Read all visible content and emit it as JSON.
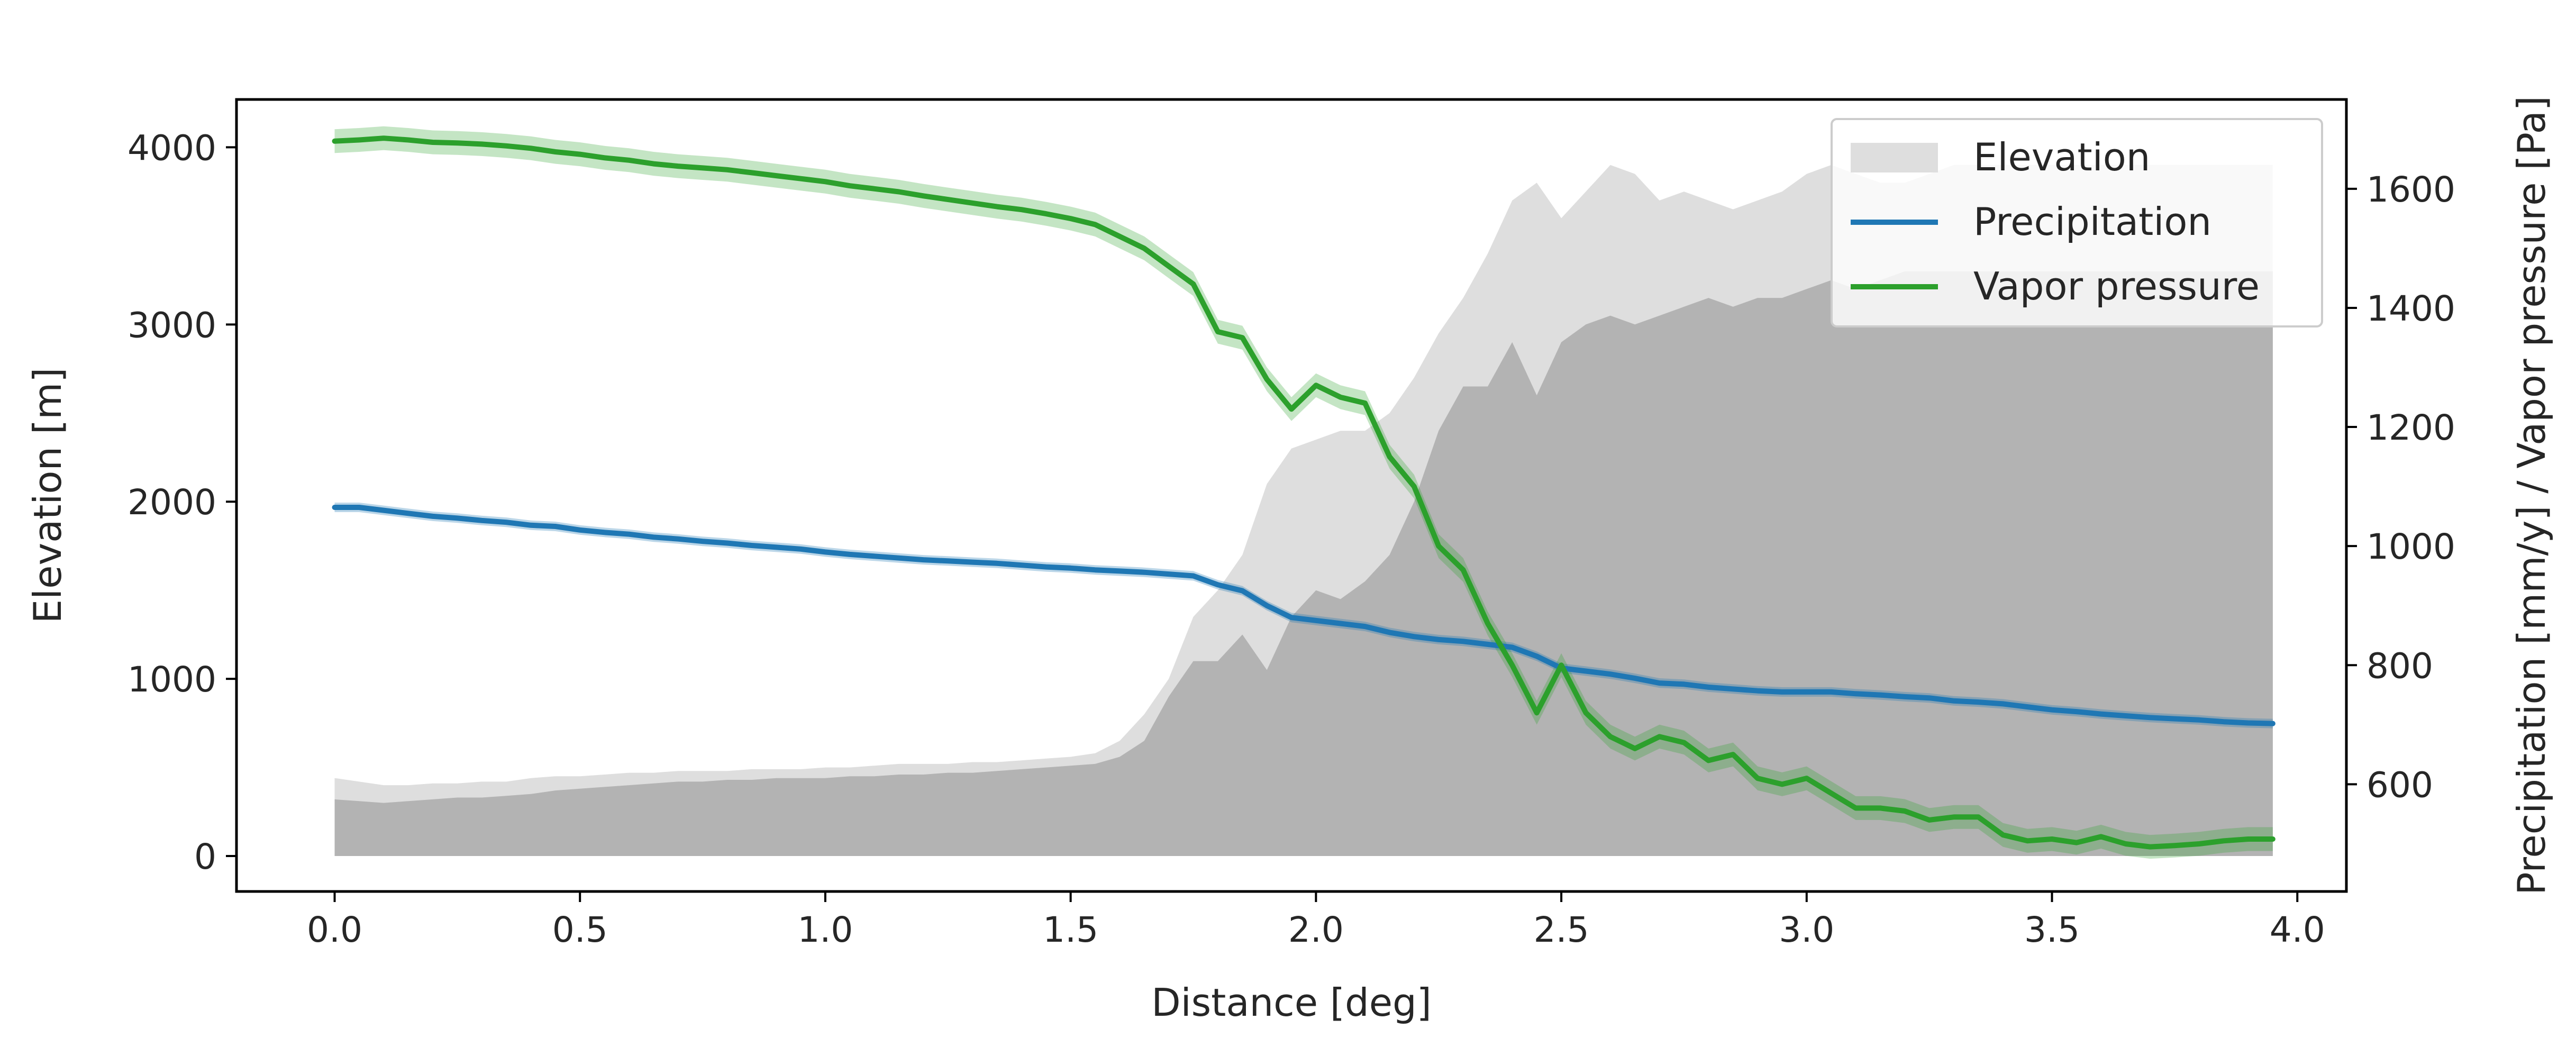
{
  "chart_data": {
    "type": "area",
    "title": "",
    "xlabel": "Distance [deg]",
    "ylabel_left": "Elevation [m]",
    "ylabel_right": "Precipitation [mm/y] / Vapor pressure [Pa]",
    "xlim": [
      -0.2,
      4.1
    ],
    "ylim_left": [
      -200,
      4270
    ],
    "ylim_right": [
      420,
      1750
    ],
    "xticks": [
      0.0,
      0.5,
      1.0,
      1.5,
      2.0,
      2.5,
      3.0,
      3.5,
      4.0
    ],
    "xtick_labels": [
      "0.0",
      "0.5",
      "1.0",
      "1.5",
      "2.0",
      "2.5",
      "3.0",
      "3.5",
      "4.0"
    ],
    "yticks_left": [
      0,
      1000,
      2000,
      3000,
      4000
    ],
    "ytick_labels_left": [
      "0",
      "1000",
      "2000",
      "3000",
      "4000"
    ],
    "yticks_right": [
      600,
      800,
      1000,
      1200,
      1400,
      1600
    ],
    "ytick_labels_right": [
      "600",
      "800",
      "1000",
      "1200",
      "1400",
      "1600"
    ],
    "grid": false,
    "legend_position": "top-right",
    "legend": [
      "Elevation",
      "Precipitation",
      "Vapor pressure"
    ],
    "colors": {
      "elevation_mean": "#b3b3b3",
      "elevation_band": "#dedede",
      "precipitation": "#1f77b4",
      "vapor_pressure": "#2ca02c"
    },
    "x": [
      0.0,
      0.05,
      0.1,
      0.15,
      0.2,
      0.25,
      0.3,
      0.35,
      0.4,
      0.45,
      0.5,
      0.55,
      0.6,
      0.65,
      0.7,
      0.75,
      0.8,
      0.85,
      0.9,
      0.95,
      1.0,
      1.05,
      1.1,
      1.15,
      1.2,
      1.25,
      1.3,
      1.35,
      1.4,
      1.45,
      1.5,
      1.55,
      1.6,
      1.65,
      1.7,
      1.75,
      1.8,
      1.85,
      1.9,
      1.95,
      2.0,
      2.05,
      2.1,
      2.15,
      2.2,
      2.25,
      2.3,
      2.35,
      2.4,
      2.45,
      2.5,
      2.55,
      2.6,
      2.65,
      2.7,
      2.75,
      2.8,
      2.85,
      2.9,
      2.95,
      3.0,
      3.05,
      3.1,
      3.15,
      3.2,
      3.25,
      3.3,
      3.35,
      3.4,
      3.45,
      3.5,
      3.55,
      3.6,
      3.65,
      3.7,
      3.75,
      3.8,
      3.85,
      3.9,
      3.95
    ],
    "series": [
      {
        "name": "Elevation",
        "axis": "left",
        "style": "area",
        "values": [
          320,
          310,
          300,
          310,
          320,
          330,
          330,
          340,
          350,
          370,
          380,
          390,
          400,
          410,
          420,
          420,
          430,
          430,
          440,
          440,
          440,
          450,
          450,
          460,
          460,
          470,
          470,
          480,
          490,
          500,
          510,
          520,
          560,
          650,
          900,
          1100,
          1100,
          1250,
          1050,
          1350,
          1500,
          1450,
          1550,
          1700,
          2000,
          2400,
          2650,
          2650,
          2900,
          2600,
          2900,
          3000,
          3050,
          3000,
          3050,
          3100,
          3150,
          3100,
          3150,
          3150,
          3200,
          3250,
          3200,
          3250,
          3300,
          3300,
          3300,
          3300,
          3300,
          3300,
          3300,
          3300,
          3300,
          3300,
          3300,
          3300,
          3300,
          3300,
          3300,
          3300
        ],
        "band_upper": [
          440,
          420,
          400,
          400,
          410,
          410,
          420,
          420,
          440,
          450,
          450,
          460,
          470,
          470,
          480,
          480,
          480,
          490,
          490,
          490,
          500,
          500,
          510,
          520,
          520,
          520,
          530,
          530,
          540,
          550,
          560,
          580,
          650,
          800,
          1000,
          1350,
          1500,
          1700,
          2100,
          2300,
          2350,
          2400,
          2400,
          2500,
          2700,
          2950,
          3150,
          3400,
          3700,
          3800,
          3600,
          3750,
          3900,
          3850,
          3700,
          3750,
          3700,
          3650,
          3700,
          3750,
          3850,
          3900,
          3850,
          3800,
          3800,
          3850,
          3900,
          3900,
          3900,
          3900,
          3900,
          3900,
          3900,
          3900,
          3900,
          3900,
          3900,
          3900,
          3900,
          3900
        ]
      },
      {
        "name": "Precipitation",
        "axis": "right",
        "style": "line",
        "values": [
          1065,
          1065,
          1060,
          1055,
          1050,
          1047,
          1043,
          1040,
          1035,
          1033,
          1027,
          1023,
          1020,
          1015,
          1012,
          1008,
          1005,
          1001,
          998,
          995,
          990,
          986,
          983,
          980,
          977,
          975,
          973,
          971,
          968,
          965,
          963,
          960,
          958,
          956,
          953,
          950,
          935,
          925,
          900,
          880,
          875,
          870,
          865,
          855,
          848,
          843,
          840,
          835,
          830,
          815,
          795,
          790,
          785,
          778,
          770,
          768,
          763,
          760,
          757,
          755,
          755,
          755,
          752,
          750,
          747,
          745,
          740,
          738,
          735,
          730,
          725,
          722,
          718,
          715,
          712,
          710,
          708,
          705,
          703,
          702
        ],
        "band_width": 8
      },
      {
        "name": "Vapor pressure",
        "axis": "right",
        "style": "line",
        "values": [
          1680,
          1682,
          1685,
          1682,
          1678,
          1677,
          1675,
          1672,
          1668,
          1662,
          1658,
          1652,
          1648,
          1642,
          1638,
          1635,
          1632,
          1627,
          1622,
          1617,
          1612,
          1605,
          1600,
          1595,
          1588,
          1582,
          1576,
          1570,
          1565,
          1558,
          1550,
          1540,
          1520,
          1500,
          1470,
          1440,
          1360,
          1350,
          1280,
          1230,
          1270,
          1250,
          1240,
          1150,
          1100,
          1000,
          960,
          870,
          800,
          720,
          800,
          720,
          680,
          660,
          680,
          670,
          640,
          650,
          610,
          600,
          610,
          585,
          560,
          560,
          555,
          540,
          545,
          545,
          515,
          505,
          508,
          502,
          512,
          500,
          495,
          497,
          500,
          505,
          508,
          508
        ],
        "band_width": 20
      }
    ]
  }
}
